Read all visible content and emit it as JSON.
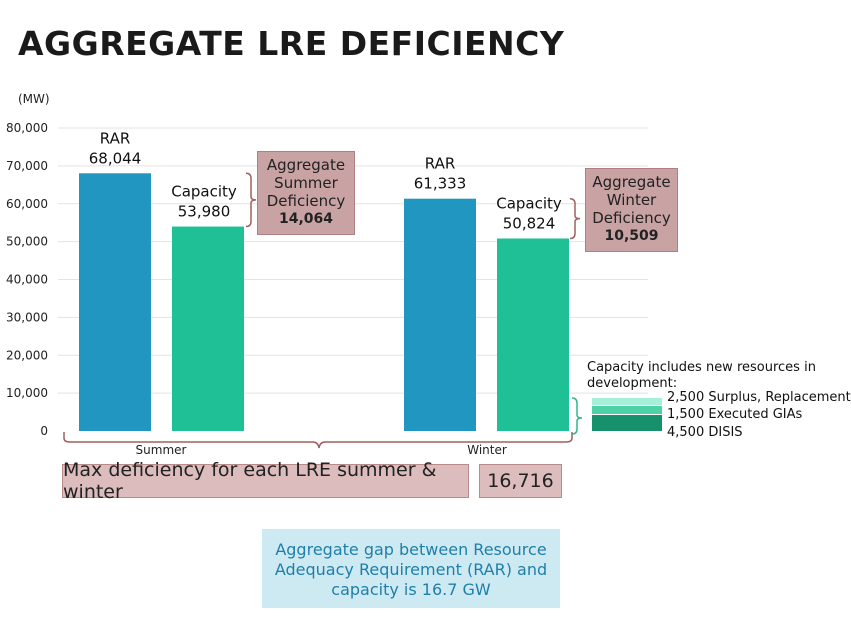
{
  "title": "AGGREGATE LRE DEFICIENCY",
  "chart_data": {
    "type": "bar",
    "ylabel": "(MW)",
    "ylim": [
      0,
      80000
    ],
    "yticks": [
      "0",
      "10,000",
      "20,000",
      "30,000",
      "40,000",
      "50,000",
      "60,000",
      "70,000",
      "80,000"
    ],
    "categories": [
      "Summer",
      "Winter"
    ],
    "series": [
      {
        "name": "RAR",
        "color": "#2196c0",
        "values": [
          68044,
          61333
        ],
        "labels": [
          "68,044",
          "61,333"
        ]
      },
      {
        "name": "Capacity",
        "color": "#1fc096",
        "values": [
          53980,
          50824
        ],
        "labels": [
          "53,980",
          "50,824"
        ]
      }
    ],
    "grid": true,
    "deficiency": [
      {
        "line1": "Aggregate",
        "line2": "Summer",
        "line3": "Deficiency",
        "value": "14,064"
      },
      {
        "line1": "Aggregate",
        "line2": "Winter",
        "line3": "Deficiency",
        "value": "10,509"
      }
    ],
    "capacity_breakdown": {
      "heading": "Capacity includes new resources in development:",
      "items": [
        {
          "value": 2500,
          "label": "2,500 Surplus, Replacement",
          "color": "#a6efd9"
        },
        {
          "value": 1500,
          "label": "1,500 Executed GIAs",
          "color": "#4fd1a8"
        },
        {
          "value": 4500,
          "label": "4,500 DISIS",
          "color": "#17906c"
        }
      ]
    }
  },
  "max_deficiency": {
    "label": "Max deficiency for each LRE summer & winter",
    "value": "16,716"
  },
  "summary": "Aggregate gap between Resource Adequacy Requirement (RAR) and capacity is 16.7 GW"
}
